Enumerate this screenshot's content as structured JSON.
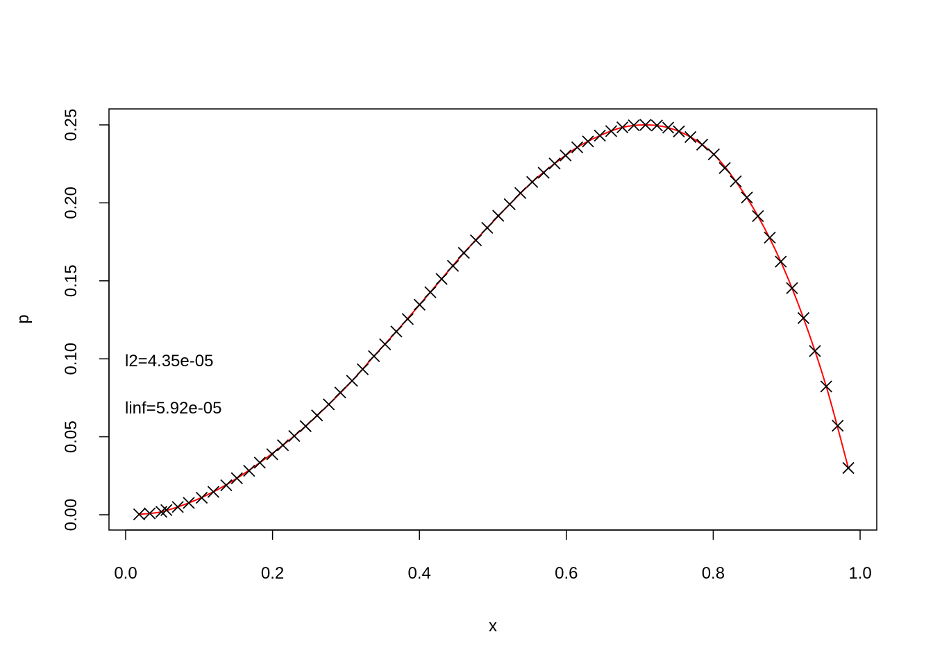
{
  "chart_data": {
    "type": "scatter",
    "title": "",
    "xlabel": "x",
    "ylabel": "p",
    "xlim": [
      0.0,
      1.0
    ],
    "ylim": [
      0.0,
      0.25
    ],
    "x_ticks": [
      "0.0",
      "0.2",
      "0.4",
      "0.6",
      "0.8",
      "1.0"
    ],
    "y_ticks": [
      "0.00",
      "0.05",
      "0.10",
      "0.15",
      "0.20",
      "0.25"
    ],
    "grid": false,
    "annotations": [
      "l2=4.35e-05",
      "linf=5.92e-05"
    ],
    "series": [
      {
        "marker": "x",
        "color": "#000000",
        "points": [
          [
            0.0184,
            0.0003
          ],
          [
            0.0328,
            0.0009
          ],
          [
            0.0487,
            0.0019
          ],
          [
            0.0555,
            0.003
          ],
          [
            0.071,
            0.005
          ],
          [
            0.086,
            0.0076
          ],
          [
            0.1036,
            0.0109
          ],
          [
            0.1195,
            0.0147
          ],
          [
            0.137,
            0.0189
          ],
          [
            0.1515,
            0.0234
          ],
          [
            0.1681,
            0.0282
          ],
          [
            0.1827,
            0.0334
          ],
          [
            0.1996,
            0.0388
          ],
          [
            0.2141,
            0.0446
          ],
          [
            0.2296,
            0.0505
          ],
          [
            0.2451,
            0.0568
          ],
          [
            0.2606,
            0.0637
          ],
          [
            0.2766,
            0.0708
          ],
          [
            0.2922,
            0.0784
          ],
          [
            0.3083,
            0.0859
          ],
          [
            0.3228,
            0.0933
          ],
          [
            0.3381,
            0.1017
          ],
          [
            0.3532,
            0.1093
          ],
          [
            0.3686,
            0.1175
          ],
          [
            0.3841,
            0.1255
          ],
          [
            0.4002,
            0.1347
          ],
          [
            0.4149,
            0.1427
          ],
          [
            0.4302,
            0.1512
          ],
          [
            0.4457,
            0.1596
          ],
          [
            0.4605,
            0.1679
          ],
          [
            0.4769,
            0.176
          ],
          [
            0.4923,
            0.184
          ],
          [
            0.5073,
            0.1917
          ],
          [
            0.5229,
            0.1991
          ],
          [
            0.5375,
            0.2063
          ],
          [
            0.5536,
            0.2134
          ],
          [
            0.5692,
            0.2193
          ],
          [
            0.5841,
            0.2252
          ],
          [
            0.599,
            0.2304
          ],
          [
            0.6149,
            0.2356
          ],
          [
            0.6295,
            0.2394
          ],
          [
            0.6457,
            0.2431
          ],
          [
            0.6611,
            0.246
          ],
          [
            0.6764,
            0.2484
          ],
          [
            0.6919,
            0.2497
          ],
          [
            0.7078,
            0.25
          ],
          [
            0.7234,
            0.2496
          ],
          [
            0.7387,
            0.2482
          ],
          [
            0.7533,
            0.2458
          ],
          [
            0.769,
            0.2422
          ],
          [
            0.785,
            0.2373
          ],
          [
            0.8008,
            0.2311
          ],
          [
            0.8157,
            0.2223
          ],
          [
            0.8307,
            0.2138
          ],
          [
            0.8459,
            0.2034
          ],
          [
            0.8609,
            0.1915
          ],
          [
            0.8771,
            0.1777
          ],
          [
            0.892,
            0.1623
          ],
          [
            0.9073,
            0.1453
          ],
          [
            0.9229,
            0.1261
          ],
          [
            0.9385,
            0.105
          ],
          [
            0.9539,
            0.0823
          ],
          [
            0.9695,
            0.0571
          ],
          [
            0.984,
            0.03
          ]
        ]
      },
      {
        "style": "line",
        "color": "#ff0000",
        "points": [
          [
            0.0184,
            0.0003
          ],
          [
            0.0487,
            0.0019
          ],
          [
            0.086,
            0.0076
          ],
          [
            0.1195,
            0.0147
          ],
          [
            0.1515,
            0.0234
          ],
          [
            0.1827,
            0.0334
          ],
          [
            0.2141,
            0.0446
          ],
          [
            0.2451,
            0.0568
          ],
          [
            0.2766,
            0.0708
          ],
          [
            0.3083,
            0.0859
          ],
          [
            0.3381,
            0.1017
          ],
          [
            0.3686,
            0.1175
          ],
          [
            0.4002,
            0.1347
          ],
          [
            0.4302,
            0.1512
          ],
          [
            0.4605,
            0.1679
          ],
          [
            0.4923,
            0.184
          ],
          [
            0.5229,
            0.1991
          ],
          [
            0.5536,
            0.2134
          ],
          [
            0.5841,
            0.2252
          ],
          [
            0.6149,
            0.2356
          ],
          [
            0.6457,
            0.2431
          ],
          [
            0.6764,
            0.2484
          ],
          [
            0.7078,
            0.25
          ],
          [
            0.7387,
            0.2482
          ],
          [
            0.769,
            0.2422
          ],
          [
            0.8008,
            0.2311
          ],
          [
            0.8307,
            0.2138
          ],
          [
            0.8609,
            0.1915
          ],
          [
            0.892,
            0.1623
          ],
          [
            0.9229,
            0.1261
          ],
          [
            0.9539,
            0.0823
          ],
          [
            0.984,
            0.03
          ]
        ]
      }
    ]
  }
}
